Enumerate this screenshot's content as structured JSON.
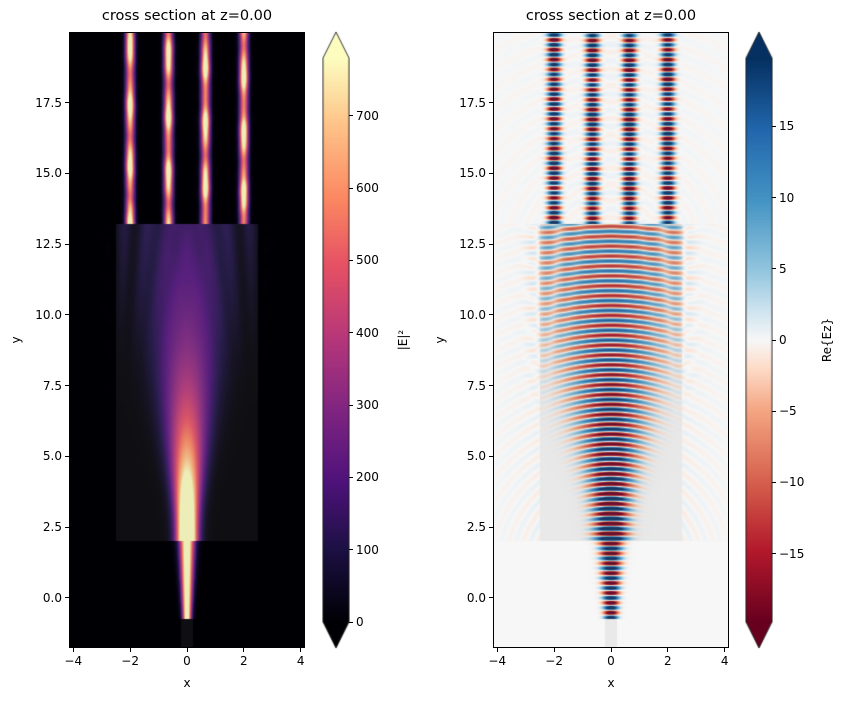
{
  "chart_data": [
    {
      "type": "heatmap",
      "title": "cross section at z=0.00",
      "xlabel": "x",
      "ylabel": "y",
      "xlim": [
        -4.15,
        4.15
      ],
      "ylim": [
        -1.77,
        20.0
      ],
      "xticks": [
        -4,
        -2,
        0,
        2,
        4
      ],
      "xtick_labels": [
        "−4",
        "−2",
        "0",
        "2",
        "4"
      ],
      "yticks": [
        0.0,
        2.5,
        5.0,
        7.5,
        10.0,
        12.5,
        15.0,
        17.5
      ],
      "ytick_labels": [
        "0.0",
        "2.5",
        "5.0",
        "7.5",
        "10.0",
        "12.5",
        "15.0",
        "17.5"
      ],
      "colormap": "magma",
      "colorbar": {
        "label": "|E|²",
        "range": [
          0,
          780
        ],
        "ticks": [
          0,
          100,
          200,
          300,
          400,
          500,
          600,
          700
        ],
        "tick_labels": [
          "0",
          "100",
          "200",
          "300",
          "400",
          "500",
          "600",
          "700"
        ],
        "extend": "both"
      },
      "quantity": "intensity"
    },
    {
      "type": "heatmap",
      "title": "cross section at z=0.00",
      "xlabel": "x",
      "ylabel": "y",
      "xlim": [
        -4.15,
        4.15
      ],
      "ylim": [
        -1.77,
        20.0
      ],
      "xticks": [
        -4,
        -2,
        0,
        2,
        4
      ],
      "xtick_labels": [
        "−4",
        "−2",
        "0",
        "2",
        "4"
      ],
      "yticks": [
        0.0,
        2.5,
        5.0,
        7.5,
        10.0,
        12.5,
        15.0,
        17.5
      ],
      "ytick_labels": [
        "0.0",
        "2.5",
        "5.0",
        "7.5",
        "10.0",
        "12.5",
        "15.0",
        "17.5"
      ],
      "colormap": "RdBu",
      "colorbar": {
        "label": "Re{Ez}",
        "range": [
          -19.8,
          19.8
        ],
        "ticks": [
          -15,
          -10,
          -5,
          0,
          5,
          10,
          15
        ],
        "tick_labels": [
          "−15",
          "−10",
          "−5",
          "0",
          "5",
          "10",
          "15"
        ],
        "extend": "both"
      },
      "quantity": "real"
    }
  ]
}
